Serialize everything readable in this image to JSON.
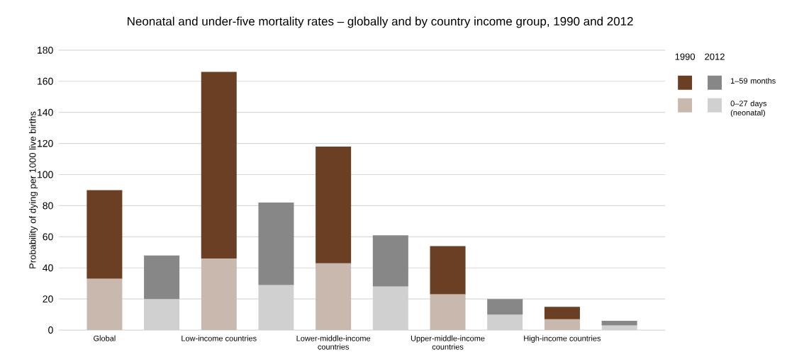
{
  "chart_data": {
    "type": "bar",
    "stacked": true,
    "title": "Neonatal and under-five mortality rates – globally and by country income group, 1990 and 2012",
    "ylabel": "Probability of dying per 1000 live births",
    "categories": [
      "Global",
      null,
      "Low-income countries",
      null,
      "Lower-middle-income countries",
      null,
      "Upper-middle-income countries",
      null,
      "High-income countries",
      null
    ],
    "series": [
      {
        "name": "0–27 days (neonatal)",
        "colors": [
          "#c9b8ad",
          "#d0d0d0",
          "#c9b8ad",
          "#d0d0d0",
          "#c9b8ad",
          "#d0d0d0",
          "#c9b8ad",
          "#d0d0d0",
          "#c9b8ad",
          "#d0d0d0"
        ],
        "values": [
          33,
          20,
          46,
          29,
          43,
          28,
          23,
          10,
          7,
          3
        ]
      },
      {
        "name": "1–59 months",
        "colors": [
          "#6b3f23",
          "#878787",
          "#6b3f23",
          "#878787",
          "#6b3f23",
          "#878787",
          "#6b3f23",
          "#878787",
          "#6b3f23",
          "#878787"
        ],
        "values": [
          57,
          28,
          120,
          53,
          75,
          33,
          31,
          10,
          8,
          3
        ]
      }
    ],
    "annotations": [
      "1990",
      "2012"
    ],
    "ylim": [
      0,
      180
    ],
    "yticks": [
      0,
      20,
      40,
      60,
      80,
      100,
      120,
      140,
      160,
      180
    ],
    "grid": "y",
    "legend": "right"
  }
}
